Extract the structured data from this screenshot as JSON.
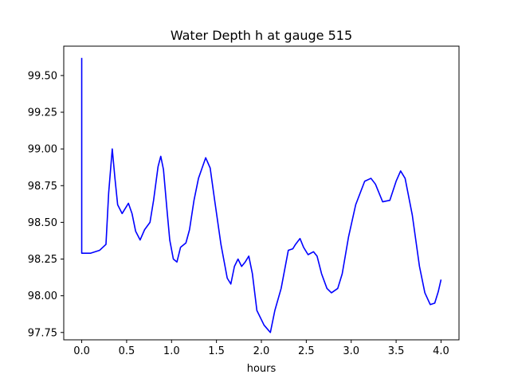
{
  "chart_data": {
    "type": "line",
    "title": "Water Depth h at gauge 515",
    "xlabel": "hours",
    "ylabel": "",
    "xlim": [
      -0.2,
      4.2
    ],
    "ylim": [
      97.7,
      99.7
    ],
    "grid": false,
    "legend": "none",
    "line_color": "#0000ff",
    "xticks": [
      0.0,
      0.5,
      1.0,
      1.5,
      2.0,
      2.5,
      3.0,
      3.5,
      4.0
    ],
    "xtick_labels": [
      "0.0",
      "0.5",
      "1.0",
      "1.5",
      "2.0",
      "2.5",
      "3.0",
      "3.5",
      "4.0"
    ],
    "yticks": [
      97.75,
      98.0,
      98.25,
      98.5,
      98.75,
      99.0,
      99.25,
      99.5
    ],
    "ytick_labels": [
      "97.75",
      "98.00",
      "98.25",
      "98.50",
      "98.75",
      "99.00",
      "99.25",
      "99.50"
    ],
    "series": [
      {
        "values": [
          [
            0.0,
            99.62
          ],
          [
            0.0,
            98.29
          ],
          [
            0.1,
            98.29
          ],
          [
            0.2,
            98.31
          ],
          [
            0.27,
            98.35
          ],
          [
            0.3,
            98.7
          ],
          [
            0.34,
            99.0
          ],
          [
            0.37,
            98.8
          ],
          [
            0.4,
            98.62
          ],
          [
            0.45,
            98.56
          ],
          [
            0.52,
            98.63
          ],
          [
            0.56,
            98.56
          ],
          [
            0.6,
            98.44
          ],
          [
            0.65,
            98.38
          ],
          [
            0.7,
            98.45
          ],
          [
            0.76,
            98.5
          ],
          [
            0.8,
            98.65
          ],
          [
            0.85,
            98.88
          ],
          [
            0.88,
            98.95
          ],
          [
            0.91,
            98.86
          ],
          [
            0.95,
            98.58
          ],
          [
            0.98,
            98.38
          ],
          [
            1.02,
            98.25
          ],
          [
            1.06,
            98.23
          ],
          [
            1.1,
            98.33
          ],
          [
            1.16,
            98.36
          ],
          [
            1.2,
            98.45
          ],
          [
            1.25,
            98.65
          ],
          [
            1.3,
            98.8
          ],
          [
            1.38,
            98.94
          ],
          [
            1.43,
            98.87
          ],
          [
            1.48,
            98.65
          ],
          [
            1.55,
            98.35
          ],
          [
            1.62,
            98.12
          ],
          [
            1.66,
            98.08
          ],
          [
            1.7,
            98.2
          ],
          [
            1.74,
            98.25
          ],
          [
            1.78,
            98.2
          ],
          [
            1.82,
            98.23
          ],
          [
            1.86,
            98.27
          ],
          [
            1.9,
            98.15
          ],
          [
            1.95,
            97.9
          ],
          [
            2.03,
            97.8
          ],
          [
            2.1,
            97.75
          ],
          [
            2.15,
            97.9
          ],
          [
            2.22,
            98.05
          ],
          [
            2.3,
            98.31
          ],
          [
            2.35,
            98.32
          ],
          [
            2.38,
            98.35
          ],
          [
            2.43,
            98.39
          ],
          [
            2.47,
            98.33
          ],
          [
            2.52,
            98.28
          ],
          [
            2.58,
            98.3
          ],
          [
            2.62,
            98.27
          ],
          [
            2.67,
            98.15
          ],
          [
            2.73,
            98.05
          ],
          [
            2.78,
            98.02
          ],
          [
            2.85,
            98.05
          ],
          [
            2.9,
            98.15
          ],
          [
            2.97,
            98.4
          ],
          [
            3.05,
            98.62
          ],
          [
            3.15,
            98.78
          ],
          [
            3.22,
            98.8
          ],
          [
            3.27,
            98.76
          ],
          [
            3.35,
            98.64
          ],
          [
            3.43,
            98.65
          ],
          [
            3.5,
            98.78
          ],
          [
            3.55,
            98.85
          ],
          [
            3.6,
            98.8
          ],
          [
            3.68,
            98.55
          ],
          [
            3.76,
            98.2
          ],
          [
            3.82,
            98.02
          ],
          [
            3.88,
            97.94
          ],
          [
            3.93,
            97.95
          ],
          [
            3.97,
            98.03
          ],
          [
            4.0,
            98.11
          ]
        ]
      }
    ]
  }
}
